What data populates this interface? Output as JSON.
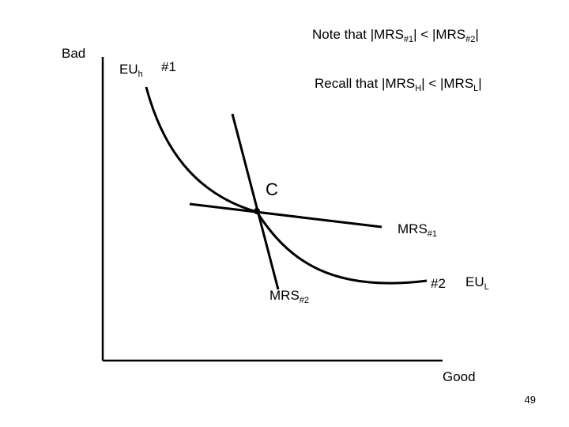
{
  "notes": {
    "note_prefix": "Note that |MRS",
    "note_sub1": "#1",
    "note_mid": "| < |MRS",
    "note_sub2": "#2",
    "note_suffix": "|",
    "recall_prefix": "Recall that |MRS",
    "recall_sub1": "H",
    "recall_mid": "| < |MRS",
    "recall_sub2": "L",
    "recall_suffix": "|"
  },
  "axes": {
    "y_label": "Bad",
    "x_label": "Good"
  },
  "curves": {
    "euh_main": "EU",
    "euh_sub": "h",
    "eul_main": "EU",
    "eul_sub": "L",
    "point_1": "#1",
    "point_2": "#2",
    "intersection": "C"
  },
  "lines": {
    "mrs1_main": "MRS",
    "mrs1_sub": "#1",
    "mrs2_main": "MRS",
    "mrs2_sub": "#2"
  },
  "footer": {
    "page_number": "49"
  }
}
